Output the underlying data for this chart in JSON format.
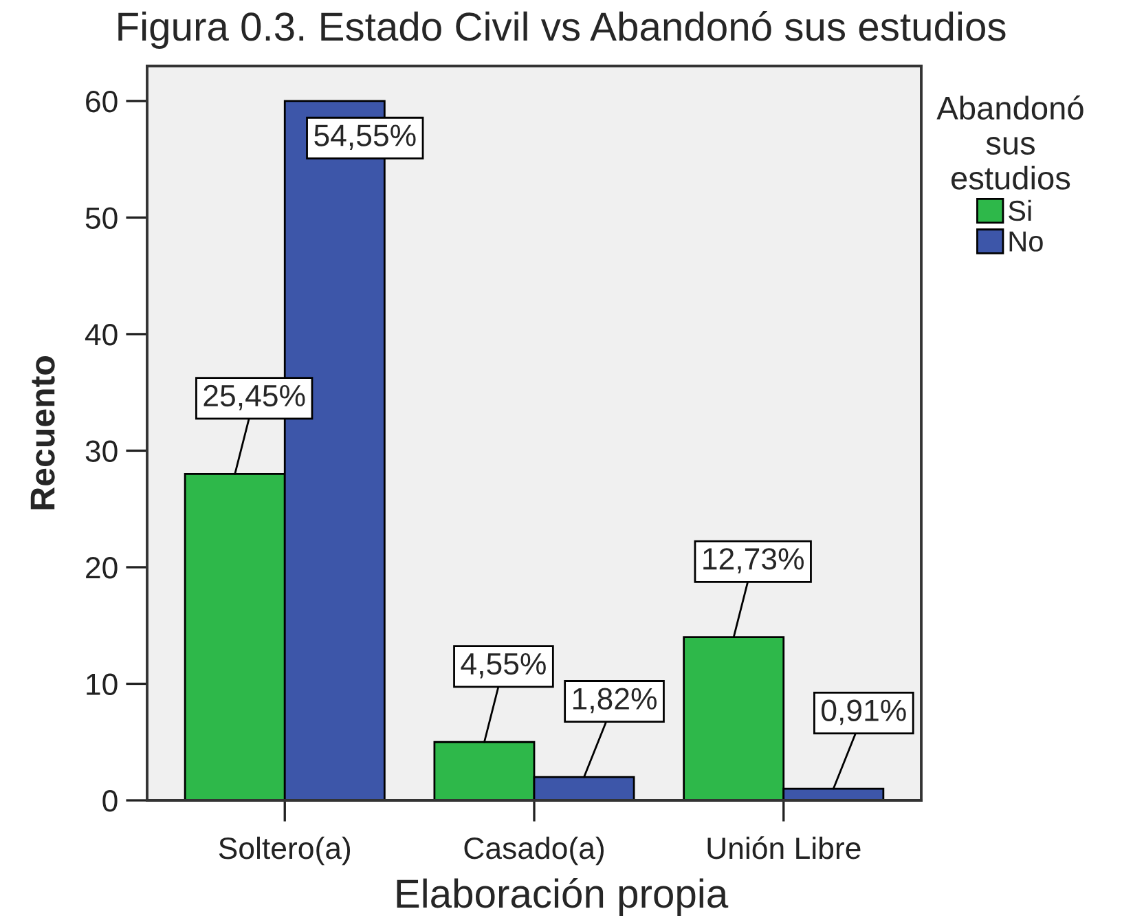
{
  "chart_data": {
    "type": "bar",
    "title": "Figura 0.3. Estado Civil vs Abandonó sus estudios",
    "ylabel": "Recuento",
    "legend_title": "Abandonó\nsus\nestudios",
    "annotations": [
      {
        "text": "25,45%",
        "x": "Soltero(a)",
        "y": 28
      },
      {
        "text": "54,55%",
        "x": "Soltero(a)",
        "y": 60
      },
      {
        "text": "4,55%",
        "x": "Casado(a)",
        "y": 5
      },
      {
        "text": "1,82%",
        "x": "Casado(a)",
        "y": 2
      },
      {
        "text": "12,73%",
        "x": "Unión Libre",
        "y": 14
      },
      {
        "text": "0,91%",
        "x": "Unión Libre",
        "y": 1
      },
      "Elaboración propia"
    ],
    "categories": [
      "Soltero(a)",
      "Casado(a)",
      "Unión Libre"
    ],
    "series": [
      {
        "name": "Si",
        "color": "#2eb84a",
        "values": [
          28,
          5,
          14
        ]
      },
      {
        "name": "No",
        "color": "#3d56a9",
        "values": [
          60,
          2,
          1
        ]
      }
    ],
    "ylim": [
      0,
      63
    ],
    "yticks": [
      0,
      10,
      20,
      30,
      40,
      50,
      60
    ],
    "grid": false,
    "legend": "right"
  }
}
